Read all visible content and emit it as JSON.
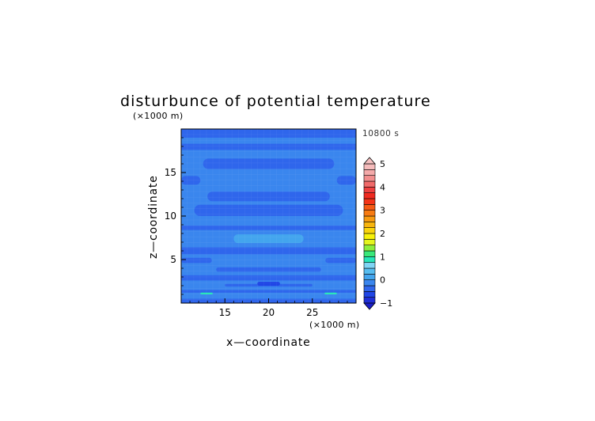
{
  "chart_data": {
    "type": "heatmap",
    "title": "disturbunce of potential temperature",
    "time_label": "10800 s",
    "xlabel": "x—coordinate",
    "ylabel": "z—coordinate",
    "x_unit": "(×1000 m)",
    "y_unit": "(×1000 m)",
    "x_ticks": [
      "15",
      "20",
      "25"
    ],
    "y_ticks": [
      "5",
      "10",
      "15"
    ],
    "x_tick_values": [
      15,
      20,
      25
    ],
    "y_tick_values": [
      5,
      10,
      15
    ],
    "xlim": [
      10,
      30
    ],
    "ylim": [
      0,
      20
    ],
    "colorbar": {
      "labels": [
        "−1",
        "0",
        "1",
        "2",
        "3",
        "4",
        "5"
      ],
      "range": [
        -1,
        5
      ],
      "step": 0.25,
      "colors": [
        "#1f2fd6",
        "#2046e6",
        "#2f66ec",
        "#3a86ee",
        "#43a5ee",
        "#56bdf0",
        "#7fd5f5",
        "#27e6b8",
        "#3ae87a",
        "#8cee3c",
        "#e4f51e",
        "#f8f20a",
        "#f9d40d",
        "#f8b50e",
        "#f79a10",
        "#f77b12",
        "#f65a14",
        "#f43418",
        "#f02a20",
        "#ee4040",
        "#f06a6a",
        "#f28e8e",
        "#f4aaaa",
        "#f6bcbc"
      ],
      "over_color": "#f6c2c2",
      "under_color": "#1a1ec8"
    },
    "field": {
      "background_color": "#3a86ee",
      "band_colors": {
        "lighter": "#43a5ee",
        "darker": "#2f66ec",
        "darkest": "#2046e6",
        "bright": "#27e6b8"
      },
      "features": [
        {
          "level": "darker",
          "x": [
            10,
            30
          ],
          "y": [
            19.0,
            20.0
          ]
        },
        {
          "level": "darker",
          "x": [
            10,
            30
          ],
          "y": [
            17.6,
            18.3
          ]
        },
        {
          "level": "darker",
          "x": [
            12.5,
            27.5
          ],
          "y": [
            15.4,
            16.6
          ]
        },
        {
          "level": "darker",
          "x": [
            10,
            12.2
          ],
          "y": [
            13.6,
            14.6
          ]
        },
        {
          "level": "darker",
          "x": [
            27.8,
            30
          ],
          "y": [
            13.6,
            14.6
          ]
        },
        {
          "level": "darker",
          "x": [
            13,
            27
          ],
          "y": [
            11.7,
            12.8
          ]
        },
        {
          "level": "darker",
          "x": [
            11.5,
            28.5
          ],
          "y": [
            10.0,
            11.3
          ]
        },
        {
          "level": "darker",
          "x": [
            10,
            30
          ],
          "y": [
            8.4,
            8.9
          ]
        },
        {
          "level": "lighter",
          "x": [
            16,
            24
          ],
          "y": [
            6.9,
            7.9
          ]
        },
        {
          "level": "darker",
          "x": [
            10,
            30
          ],
          "y": [
            5.6,
            6.4
          ]
        },
        {
          "level": "darker",
          "x": [
            10,
            13.5
          ],
          "y": [
            4.6,
            5.2
          ]
        },
        {
          "level": "darker",
          "x": [
            26.5,
            30
          ],
          "y": [
            4.6,
            5.2
          ]
        },
        {
          "level": "darker",
          "x": [
            14,
            26
          ],
          "y": [
            3.6,
            4.1
          ]
        },
        {
          "level": "darker",
          "x": [
            10,
            30
          ],
          "y": [
            2.6,
            3.2
          ]
        },
        {
          "level": "darker",
          "x": [
            15,
            25
          ],
          "y": [
            1.9,
            2.2
          ]
        },
        {
          "level": "darkest",
          "x": [
            18.7,
            21.3
          ],
          "y": [
            2.0,
            2.45
          ]
        },
        {
          "level": "darker",
          "x": [
            10,
            30
          ],
          "y": [
            1.2,
            1.5
          ]
        },
        {
          "level": "bright",
          "x": [
            12.2,
            13.6
          ],
          "y": [
            1.0,
            1.2
          ]
        },
        {
          "level": "bright",
          "x": [
            26.4,
            27.8
          ],
          "y": [
            1.0,
            1.2
          ]
        },
        {
          "level": "darker",
          "x": [
            10,
            30
          ],
          "y": [
            0.0,
            0.5
          ]
        }
      ]
    }
  }
}
